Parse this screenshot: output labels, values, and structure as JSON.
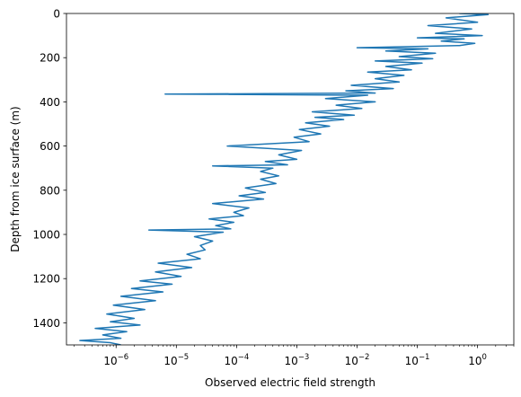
{
  "chart_data": {
    "type": "line",
    "title": "",
    "xlabel": "Observed electric field strength",
    "ylabel": "Depth from ice surface (m)",
    "x_scale": "log",
    "y_inverted": true,
    "xlim": [
      1.5e-07,
      4
    ],
    "ylim": [
      1500,
      0
    ],
    "x_ticks": [
      {
        "base": "10",
        "exp": "−6",
        "value": 1e-06
      },
      {
        "base": "10",
        "exp": "−5",
        "value": 1e-05
      },
      {
        "base": "10",
        "exp": "−4",
        "value": 0.0001
      },
      {
        "base": "10",
        "exp": "−3",
        "value": 0.001
      },
      {
        "base": "10",
        "exp": "−2",
        "value": 0.01
      },
      {
        "base": "10",
        "exp": "−1",
        "value": 0.1
      },
      {
        "base": "10",
        "exp": "0",
        "value": 1
      }
    ],
    "y_ticks": [
      {
        "label": "0",
        "value": 0
      },
      {
        "label": "200",
        "value": 200
      },
      {
        "label": "400",
        "value": 400
      },
      {
        "label": "600",
        "value": 600
      },
      {
        "label": "800",
        "value": 800
      },
      {
        "label": "1000",
        "value": 1000
      },
      {
        "label": "1200",
        "value": 1200
      },
      {
        "label": "1400",
        "value": 1400
      }
    ],
    "grid": false,
    "series_color": "#1f77b4",
    "series": [
      {
        "x": [
          0.5,
          1.5,
          0.3,
          1.0,
          0.15,
          0.8,
          0.2,
          1.2,
          0.1,
          0.6,
          0.25,
          0.9,
          0.5,
          0.01,
          0.15,
          0.03,
          0.2,
          0.05,
          0.18,
          0.02,
          0.12,
          0.03,
          0.08,
          0.015,
          0.06,
          0.02,
          0.05,
          0.008,
          0.04,
          0.0065,
          0.02,
          6.5e-06,
          0.015,
          0.003,
          0.02,
          0.0045,
          0.012,
          0.0018,
          0.009,
          0.002,
          0.006,
          0.0014,
          0.0035,
          0.0011,
          0.0025,
          0.0009,
          0.0016,
          7e-05,
          0.0012,
          0.0005,
          0.001,
          0.0003,
          0.0007,
          4e-05,
          0.0004,
          0.00025,
          0.0005,
          0.00025,
          0.00045,
          0.00014,
          0.0003,
          0.00011,
          0.00028,
          4e-05,
          0.00016,
          9e-05,
          0.00013,
          3.5e-05,
          9e-05,
          4.5e-05,
          8e-05,
          3.5e-06,
          6e-05,
          2e-05,
          4e-05,
          2.5e-05,
          3e-05,
          1.5e-05,
          2.5e-05,
          5e-06,
          1.8e-05,
          4.5e-06,
          1.2e-05,
          2.5e-06,
          8.5e-06,
          1.8e-06,
          6e-06,
          1.2e-06,
          4.5e-06,
          9e-07,
          3e-06,
          7e-07,
          2e-06,
          8e-07,
          2.5e-06,
          4.5e-07,
          1.5e-06,
          6e-07,
          1.2e-06,
          2.5e-07,
          8e-07,
          1.2e-06
        ],
        "y": [
          0,
          5,
          20,
          40,
          55,
          70,
          90,
          100,
          110,
          115,
          125,
          135,
          145,
          155,
          160,
          170,
          180,
          195,
          205,
          215,
          225,
          240,
          255,
          265,
          280,
          295,
          310,
          325,
          340,
          350,
          360,
          365,
          370,
          385,
          400,
          415,
          430,
          445,
          460,
          470,
          480,
          495,
          510,
          525,
          545,
          560,
          580,
          600,
          620,
          640,
          660,
          670,
          685,
          690,
          700,
          715,
          735,
          750,
          770,
          790,
          810,
          825,
          840,
          860,
          880,
          900,
          915,
          930,
          945,
          960,
          975,
          980,
          990,
          1010,
          1030,
          1050,
          1070,
          1090,
          1110,
          1130,
          1150,
          1170,
          1190,
          1210,
          1225,
          1245,
          1260,
          1280,
          1300,
          1320,
          1340,
          1360,
          1380,
          1395,
          1410,
          1425,
          1440,
          1455,
          1470,
          1480,
          1490,
          1500
        ]
      }
    ]
  }
}
